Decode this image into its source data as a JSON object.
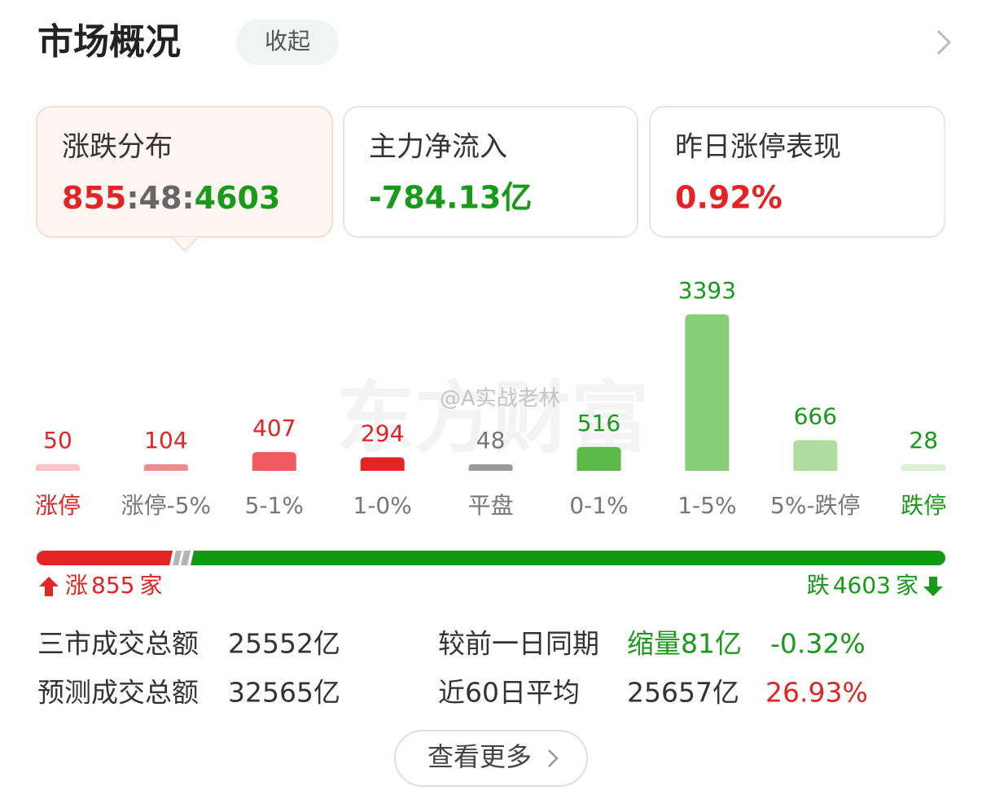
{
  "header": {
    "title": "市场概况",
    "toggle": "收起"
  },
  "cards": [
    {
      "title": "涨跌分布"
    },
    {
      "title": "主力净流入",
      "value": "-784.13亿"
    },
    {
      "title": "昨日涨停表现",
      "value": "0.92%"
    }
  ],
  "breadth": {
    "up": 855,
    "flat": 48,
    "down": 4603,
    "separator": ":",
    "up_label": "涨",
    "down_label": "跌",
    "unit": "家"
  },
  "chart_data": {
    "type": "bar",
    "categories": [
      "涨停",
      "涨停-5%",
      "5-1%",
      "1-0%",
      "平盘",
      "0-1%",
      "1-5%",
      "5%-跌停",
      "跌停"
    ],
    "values": [
      50,
      104,
      407,
      294,
      48,
      516,
      3393,
      666,
      28
    ],
    "colors": [
      "#f9c3c8",
      "#f28a90",
      "#ef5b5f",
      "#e42424",
      "#9a9a9a",
      "#5ab947",
      "#86cf76",
      "#aedd9f",
      "#d8efd2"
    ],
    "value_label_colors": [
      "#e42424",
      "#e42424",
      "#e42424",
      "#e42424",
      "#777777",
      "#1a9a1a",
      "#1a9a1a",
      "#1a9a1a",
      "#1a9a1a"
    ],
    "category_label_colors": [
      "#e42424",
      "#777777",
      "#777777",
      "#777777",
      "#777777",
      "#777777",
      "#777777",
      "#777777",
      "#1a9a1a"
    ]
  },
  "summary": {
    "rows": [
      [
        "三市成交总额",
        "25552亿",
        "较前一日同期",
        "缩量81亿",
        "-0.32%"
      ],
      [
        "预测成交总额",
        "32565亿",
        "近60日平均",
        "25657亿",
        "26.93%"
      ]
    ]
  },
  "more_button": "查看更多",
  "watermark": {
    "brand": "东方财富",
    "author": "@A实战老林"
  }
}
